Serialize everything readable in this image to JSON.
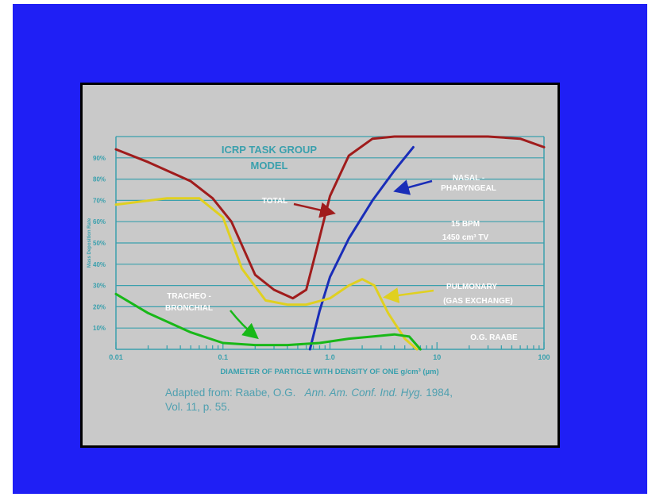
{
  "chart_data": {
    "type": "line",
    "title": "ICRP TASK GROUP MODEL",
    "ylabel": "Mass Deposition Rate",
    "xlabel": "DIAMETER OF PARTICLE WITH DENSITY OF ONE g/cm³ (µm)",
    "xscale": "log",
    "xlim": [
      0.01,
      100
    ],
    "ylim": [
      0,
      100
    ],
    "x_ticks": [
      "0.01",
      "0.1",
      "1.0",
      "10",
      "100"
    ],
    "y_ticks": [
      "10%",
      "20%",
      "30%",
      "40%",
      "50%",
      "60%",
      "70%",
      "80%",
      "90%"
    ],
    "grid": "horizontal",
    "annotations": {
      "conditions_1": "15 BPM",
      "conditions_2": "1450 cm³ TV",
      "author": "O.G. RAABE",
      "total": "TOTAL",
      "nasal_1": "NASAL -",
      "nasal_2": "PHARYNGEAL",
      "pulm_1": "PULMONARY",
      "pulm_2": "(GAS EXCHANGE)",
      "trach_1": "TRACHEO -",
      "trach_2": "BRONCHIAL"
    },
    "series": [
      {
        "name": "TOTAL",
        "color": "#a01c1c",
        "x": [
          0.01,
          0.02,
          0.05,
          0.08,
          0.12,
          0.2,
          0.3,
          0.45,
          0.6,
          0.75,
          1.0,
          1.5,
          2.5,
          4,
          10,
          30,
          60,
          100
        ],
        "y": [
          94,
          88,
          79,
          71,
          60,
          35,
          28,
          24,
          28,
          47,
          72,
          91,
          99,
          100,
          100,
          100,
          99,
          95
        ]
      },
      {
        "name": "NASAL - PHARYNGEAL",
        "color": "#1a2db8",
        "x": [
          0.65,
          0.8,
          1.0,
          1.5,
          2.5,
          4,
          6
        ],
        "y": [
          0,
          18,
          34,
          52,
          70,
          84,
          95
        ]
      },
      {
        "name": "PULMONARY (GAS EXCHANGE)",
        "color": "#e0d020",
        "x": [
          0.01,
          0.03,
          0.06,
          0.1,
          0.15,
          0.25,
          0.4,
          0.6,
          1.0,
          1.5,
          2.0,
          2.6,
          3.5,
          5,
          6.5
        ],
        "y": [
          68,
          71,
          71,
          62,
          38,
          23,
          21,
          21,
          24,
          30,
          33,
          30,
          17,
          5,
          0
        ]
      },
      {
        "name": "TRACHEO - BRONCHIAL",
        "color": "#18b818",
        "x": [
          0.01,
          0.02,
          0.05,
          0.1,
          0.2,
          0.4,
          0.8,
          1.5,
          2.5,
          4,
          5.5,
          7
        ],
        "y": [
          26,
          17,
          8,
          3,
          2,
          2,
          3,
          5,
          6,
          7,
          6,
          0
        ]
      }
    ]
  },
  "caption": {
    "line1": "Adapted from:  Raabe, O.G.",
    "journal": "Ann. Am. Conf. Ind. Hyg.",
    "year": "1984,",
    "line2": "Vol. 11, p. 55."
  }
}
